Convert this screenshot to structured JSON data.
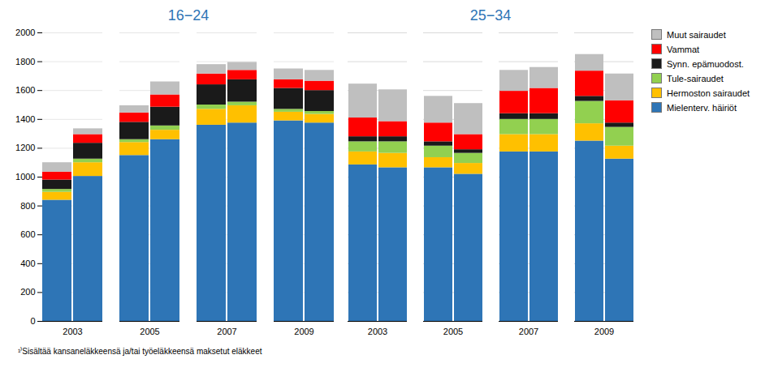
{
  "chart_data": {
    "type": "bar",
    "stacked": true,
    "grid": true,
    "legend": "upper right",
    "ylim": [
      0,
      2000
    ],
    "yticks": [
      0,
      200,
      400,
      600,
      800,
      1000,
      1200,
      1400,
      1600,
      1800,
      2000
    ],
    "categories": [
      "2003",
      "2005",
      "2007",
      "2009"
    ],
    "series": [
      {
        "name": "Mielenterv. häiriöt",
        "color": "#2E75B6"
      },
      {
        "name": "Hermoston sairaudet",
        "color": "#FFC000"
      },
      {
        "name": "Tule-sairaudet",
        "color": "#92D050"
      },
      {
        "name": "Synn. epämuodost.",
        "color": "#1A1A1A"
      },
      {
        "name": "Vammat",
        "color": "#FF0000"
      },
      {
        "name": "Muut sairaudet",
        "color": "#BFBFBF"
      }
    ],
    "groups": [
      {
        "label": "16−24",
        "color": "#2E75B6",
        "bars": [
          {
            "values": [
              [
                840,
                1150,
                1360,
                1390
              ],
              [
                55,
                90,
                110,
                60
              ],
              [
                20,
                20,
                30,
                20
              ],
              [
                65,
                120,
                140,
                145
              ],
              [
                55,
                65,
                75,
                60
              ],
              [
                65,
                50,
                65,
                75
              ]
            ]
          },
          {
            "values": [
              [
                1005,
                1260,
                1375,
                1375
              ],
              [
                95,
                65,
                120,
                60
              ],
              [
                25,
                30,
                25,
                20
              ],
              [
                110,
                130,
                155,
                145
              ],
              [
                60,
                85,
                65,
                65
              ],
              [
                40,
                90,
                55,
                75
              ]
            ]
          }
        ]
      },
      {
        "label": "25−34",
        "color": "#2E75B6",
        "bars": [
          {
            "values": [
              [
                1085,
                1065,
                1175,
                1250
              ],
              [
                90,
                70,
                120,
                120
              ],
              [
                70,
                80,
                105,
                155
              ],
              [
                35,
                30,
                40,
                35
              ],
              [
                130,
                130,
                155,
                175
              ],
              [
                235,
                185,
                145,
                115
              ]
            ]
          },
          {
            "values": [
              [
                1065,
                1020,
                1175,
                1125
              ],
              [
                100,
                75,
                120,
                90
              ],
              [
                80,
                70,
                105,
                130
              ],
              [
                35,
                25,
                40,
                30
              ],
              [
                105,
                105,
                175,
                155
              ],
              [
                220,
                215,
                145,
                185
              ]
            ]
          }
        ]
      }
    ],
    "annotations": [
      "¹⁾Sisältää kansaneläkkeensä ja/tai työeläkkeensä maksetut eläkkeet"
    ]
  }
}
